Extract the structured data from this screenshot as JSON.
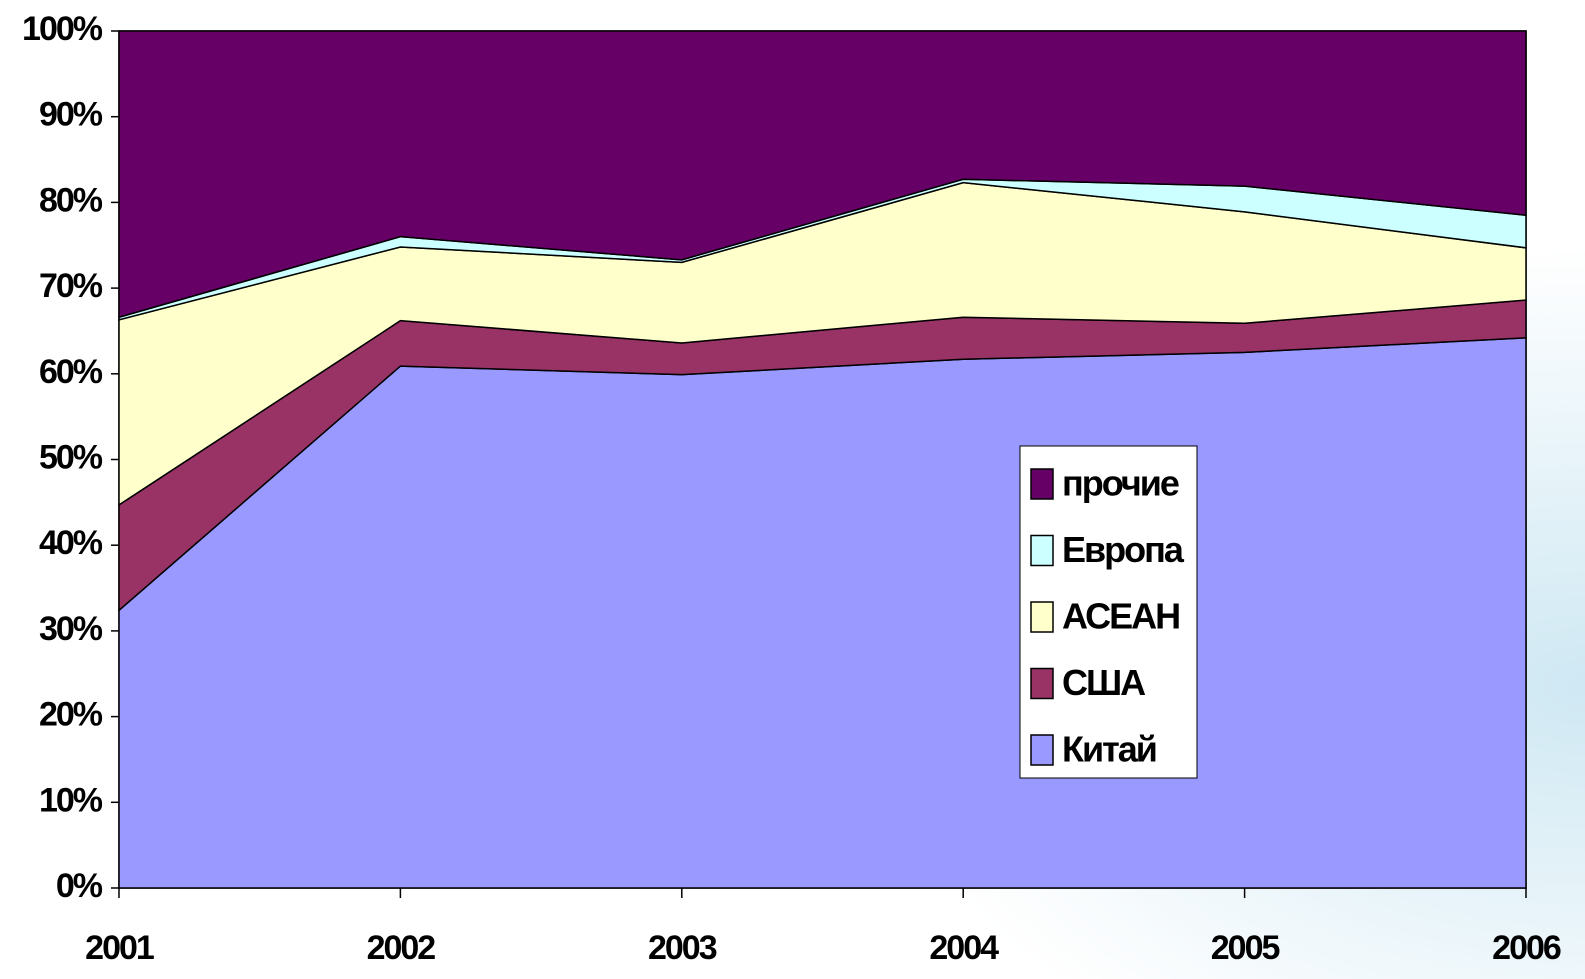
{
  "chart_data": {
    "type": "stacked-area",
    "categories": [
      "2001",
      "2002",
      "2003",
      "2004",
      "2005",
      "2006"
    ],
    "series": [
      {
        "name": "Китай",
        "color": "#9999ff",
        "values": [
          32.4,
          60.9,
          59.9,
          61.7,
          62.5,
          64.2
        ]
      },
      {
        "name": "США",
        "color": "#993366",
        "values": [
          12.3,
          5.3,
          3.7,
          4.9,
          3.4,
          4.4
        ]
      },
      {
        "name": "АСЕАН",
        "color": "#ffffcc",
        "values": [
          21.6,
          8.6,
          9.4,
          15.7,
          13.0,
          6.1
        ]
      },
      {
        "name": "Европа",
        "color": "#ccffff",
        "values": [
          0.3,
          1.2,
          0.3,
          0.4,
          3.0,
          3.8
        ]
      },
      {
        "name": "прочие",
        "color": "#660066",
        "values": [
          33.4,
          24.0,
          26.7,
          17.3,
          18.1,
          21.5
        ]
      }
    ],
    "ylim": [
      0,
      100
    ],
    "yticks": [
      {
        "value": 0,
        "label": "0%"
      },
      {
        "value": 10,
        "label": "10%"
      },
      {
        "value": 20,
        "label": "20%"
      },
      {
        "value": 30,
        "label": "30%"
      },
      {
        "value": 40,
        "label": "40%"
      },
      {
        "value": 50,
        "label": "50%"
      },
      {
        "value": 60,
        "label": "60%"
      },
      {
        "value": 70,
        "label": "70%"
      },
      {
        "value": 80,
        "label": "80%"
      },
      {
        "value": 90,
        "label": "90%"
      },
      {
        "value": 100,
        "label": "100%"
      }
    ],
    "legend": "right"
  }
}
